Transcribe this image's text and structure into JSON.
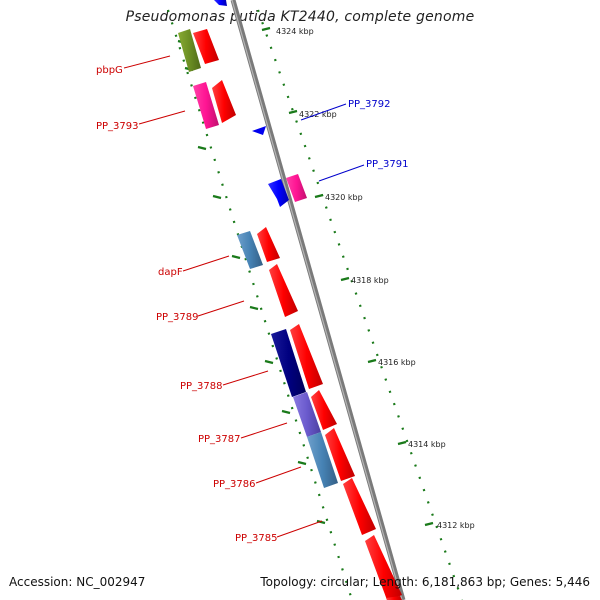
{
  "header": {
    "title": "Pseudomonas putida KT2440, complete genome"
  },
  "footer": {
    "accession": "Accession: NC_002947",
    "topology": "Topology: circular; Length: 6,181,863 bp; Genes: 5,446"
  },
  "colors": {
    "backbone": "#808080",
    "tick": "#1a7a1a",
    "label_red": "#cc0000",
    "label_blue": "#0000cc",
    "cds_forward": "#ff0000",
    "olive": "#6b8e23",
    "pink": "#ff1493",
    "blue": "#0000ff",
    "steel": "#4682b4",
    "navy": "#000080",
    "violet": "#6a5acd"
  },
  "scale_labels": [
    "4324 kbp",
    "4322 kbp",
    "4320 kbp",
    "4318 kbp",
    "4316 kbp",
    "4314 kbp",
    "4312 kbp"
  ],
  "gene_labels": [
    {
      "text": "pbpG",
      "color": "red"
    },
    {
      "text": "PP_3793",
      "color": "red"
    },
    {
      "text": "PP_3792",
      "color": "blue"
    },
    {
      "text": "PP_3791",
      "color": "blue"
    },
    {
      "text": "dapF",
      "color": "red"
    },
    {
      "text": "PP_3789",
      "color": "red"
    },
    {
      "text": "PP_3788",
      "color": "red"
    },
    {
      "text": "PP_3787",
      "color": "red"
    },
    {
      "text": "PP_3786",
      "color": "red"
    },
    {
      "text": "PP_3785",
      "color": "red"
    }
  ]
}
